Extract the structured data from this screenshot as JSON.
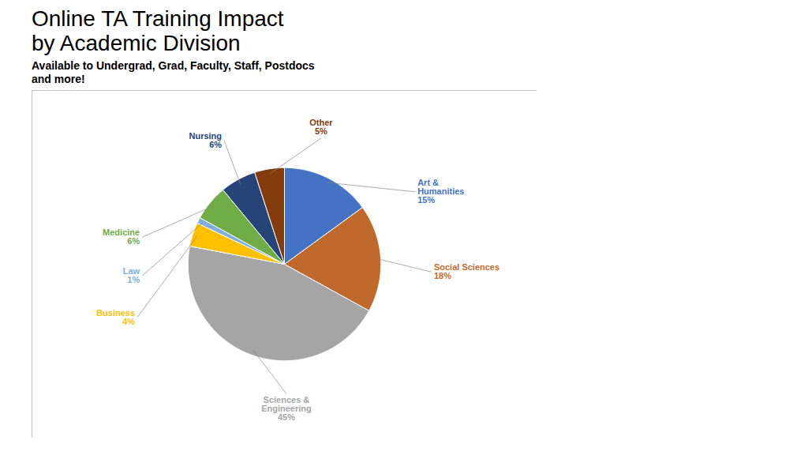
{
  "chart_data": {
    "type": "pie",
    "title": "Online TA Training Impact\nby Academic Division",
    "subtitle": "Available to Undergrad, Grad, Faculty, Staff, Postdocs\nand more!",
    "categories": [
      "Art &\nHumanities",
      "Social Sciences",
      "Sciences &\nEngineering",
      "Business",
      "Law",
      "Medicine",
      "Nursing",
      "Other"
    ],
    "values": [
      15,
      18,
      45,
      4,
      1,
      6,
      6,
      5
    ],
    "value_labels": [
      "15%",
      "18%",
      "45%",
      "4%",
      "1%",
      "6%",
      "6%",
      "5%"
    ],
    "colors": [
      "#4472C4",
      "#C0692C",
      "#A5A5A5",
      "#FFC000",
      "#7FAEDC",
      "#70AD47",
      "#264478",
      "#843C0C"
    ],
    "data_labels": true
  }
}
